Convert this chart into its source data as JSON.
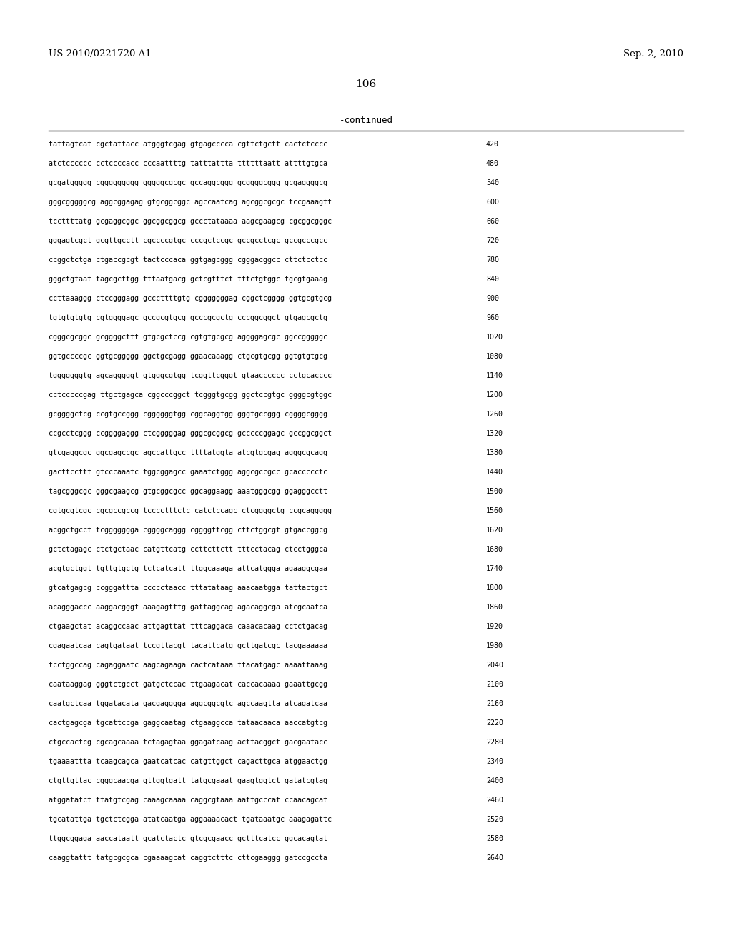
{
  "header_left": "US 2010/0221720 A1",
  "header_right": "Sep. 2, 2010",
  "page_number": "106",
  "continued_label": "-continued",
  "bg_color": "#ffffff",
  "text_color": "#000000",
  "font_size": 7.2,
  "header_font_size": 9.5,
  "page_num_font_size": 11,
  "continued_font_size": 9,
  "sequence_lines": [
    [
      "tattagtcat cgctattacc atgggtcgag gtgagcccca cgttctgctt cactctcccc",
      "420"
    ],
    [
      "atctcccccc cctccccacc cccaattttg tatttattta ttttttaatt attttgtgca",
      "480"
    ],
    [
      "gcgatggggg cggggggggg gggggcgcgc gccaggcggg gcggggcggg gcgaggggcg",
      "540"
    ],
    [
      "gggcgggggcg aggcggagag gtgcggcggc agccaatcag agcggcgcgc tccgaaagtt",
      "600"
    ],
    [
      "tccttttatg gcgaggcggc ggcggcggcg gccctataaaa aagcgaagcg cgcggcgggc",
      "660"
    ],
    [
      "gggagtcgct gcgttgcctt cgccccgtgc cccgctccgc gccgcctcgc gccgcccgcc",
      "720"
    ],
    [
      "ccggctctga ctgaccgcgt tactcccaca ggtgagcggg cgggacggcc cttctcctcc",
      "780"
    ],
    [
      "gggctgtaat tagcgcttgg tttaatgacg gctcgtttct tttctgtggc tgcgtgaaag",
      "840"
    ],
    [
      "ccttaaaggg ctccgggagg gcccttttgtg cgggggggag cggctcgggg ggtgcgtgcg",
      "900"
    ],
    [
      "tgtgtgtgtg cgtggggagc gccgcgtgcg gcccgcgctg cccggcggct gtgagcgctg",
      "960"
    ],
    [
      "cgggcgcggc gcggggcttt gtgcgctccg cgtgtgcgcg aggggagcgc ggccgggggc",
      "1020"
    ],
    [
      "ggtgccccgc ggtgcggggg ggctgcgagg ggaacaaagg ctgcgtgcgg ggtgtgtgcg",
      "1080"
    ],
    [
      "tgggggggtg agcagggggt gtgggcgtgg tcggttcgggt gtaacccccc cctgcacccc",
      "1140"
    ],
    [
      "cctcccccgag ttgctgagca cggcccggct tcgggtgcgg ggctccgtgc ggggcgtggc",
      "1200"
    ],
    [
      "gcggggctcg ccgtgccggg cggggggtgg cggcaggtgg gggtgccggg cggggcgggg",
      "1260"
    ],
    [
      "ccgcctcggg ccggggaggg ctcgggggag gggcgcggcg gcccccggagc gccggcggct",
      "1320"
    ],
    [
      "gtcgaggcgc ggcgagccgc agccattgcc ttttatggta atcgtgcgag agggcgcagg",
      "1380"
    ],
    [
      "gacttccttt gtcccaaatc tggcggagcc gaaatctggg aggcgccgcc gcaccccctc",
      "1440"
    ],
    [
      "tagcgggcgc gggcgaagcg gtgcggcgcc ggcaggaagg aaatgggcgg ggagggcctt",
      "1500"
    ],
    [
      "cgtgcgtcgc cgcgccgccg tcccctttctc catctccagc ctcggggctg ccgcaggggg",
      "1560"
    ],
    [
      "acggctgcct tcggggggga cggggcaggg cggggttcgg cttctggcgt gtgaccggcg",
      "1620"
    ],
    [
      "gctctagagc ctctgctaac catgttcatg ccttcttctt tttcctacag ctcctgggca",
      "1680"
    ],
    [
      "acgtgctggt tgttgtgctg tctcatcatt ttggcaaaga attcatggga agaaggcgaa",
      "1740"
    ],
    [
      "gtcatgagcg ccgggattta ccccctaacc tttatataag aaacaatgga tattactgct",
      "1800"
    ],
    [
      "acagggaccc aaggacgggt aaagagtttg gattaggcag agacaggcga atcgcaatca",
      "1860"
    ],
    [
      "ctgaagctat acaggccaac attgagttat tttcaggaca caaacacaag cctctgacag",
      "1920"
    ],
    [
      "cgagaatcaa cagtgataat tccgttacgt tacattcatg gcttgatcgc tacgaaaaaa",
      "1980"
    ],
    [
      "tcctggccag cagaggaatc aagcagaaga cactcataaa ttacatgagc aaaattaaag",
      "2040"
    ],
    [
      "caataaggag gggtctgcct gatgctccac ttgaagacat caccacaaaa gaaattgcgg",
      "2100"
    ],
    [
      "caatgctcaa tggatacata gacgagggga aggcggcgtc agccaagtta atcagatcaa",
      "2160"
    ],
    [
      "cactgagcga tgcattccga gaggcaatag ctgaaggcca tataacaaca aaccatgtcg",
      "2220"
    ],
    [
      "ctgccactcg cgcagcaaaa tctagagtaa ggagatcaag acttacggct gacgaatacc",
      "2280"
    ],
    [
      "tgaaaattta tcaagcagca gaatcatcac catgttggct cagacttgca atggaactgg",
      "2340"
    ],
    [
      "ctgttgttac cgggcaacga gttggtgatt tatgcgaaat gaagtggtct gatatcgtag",
      "2400"
    ],
    [
      "atggatatct ttatgtcgag caaagcaaaa caggcgtaaa aattgcccat ccaacagcat",
      "2460"
    ],
    [
      "tgcatattga tgctctcgga atatcaatga aggaaaacact tgataaatgc aaagagattc",
      "2520"
    ],
    [
      "ttggcggaga aaccataatt gcatctactc gtcgcgaacc gctttcatcc ggcacagtat",
      "2580"
    ],
    [
      "caaggtattt tatgcgcgca cgaaaagcat caggtctttc cttcgaaggg gatccgccta",
      "2640"
    ]
  ]
}
